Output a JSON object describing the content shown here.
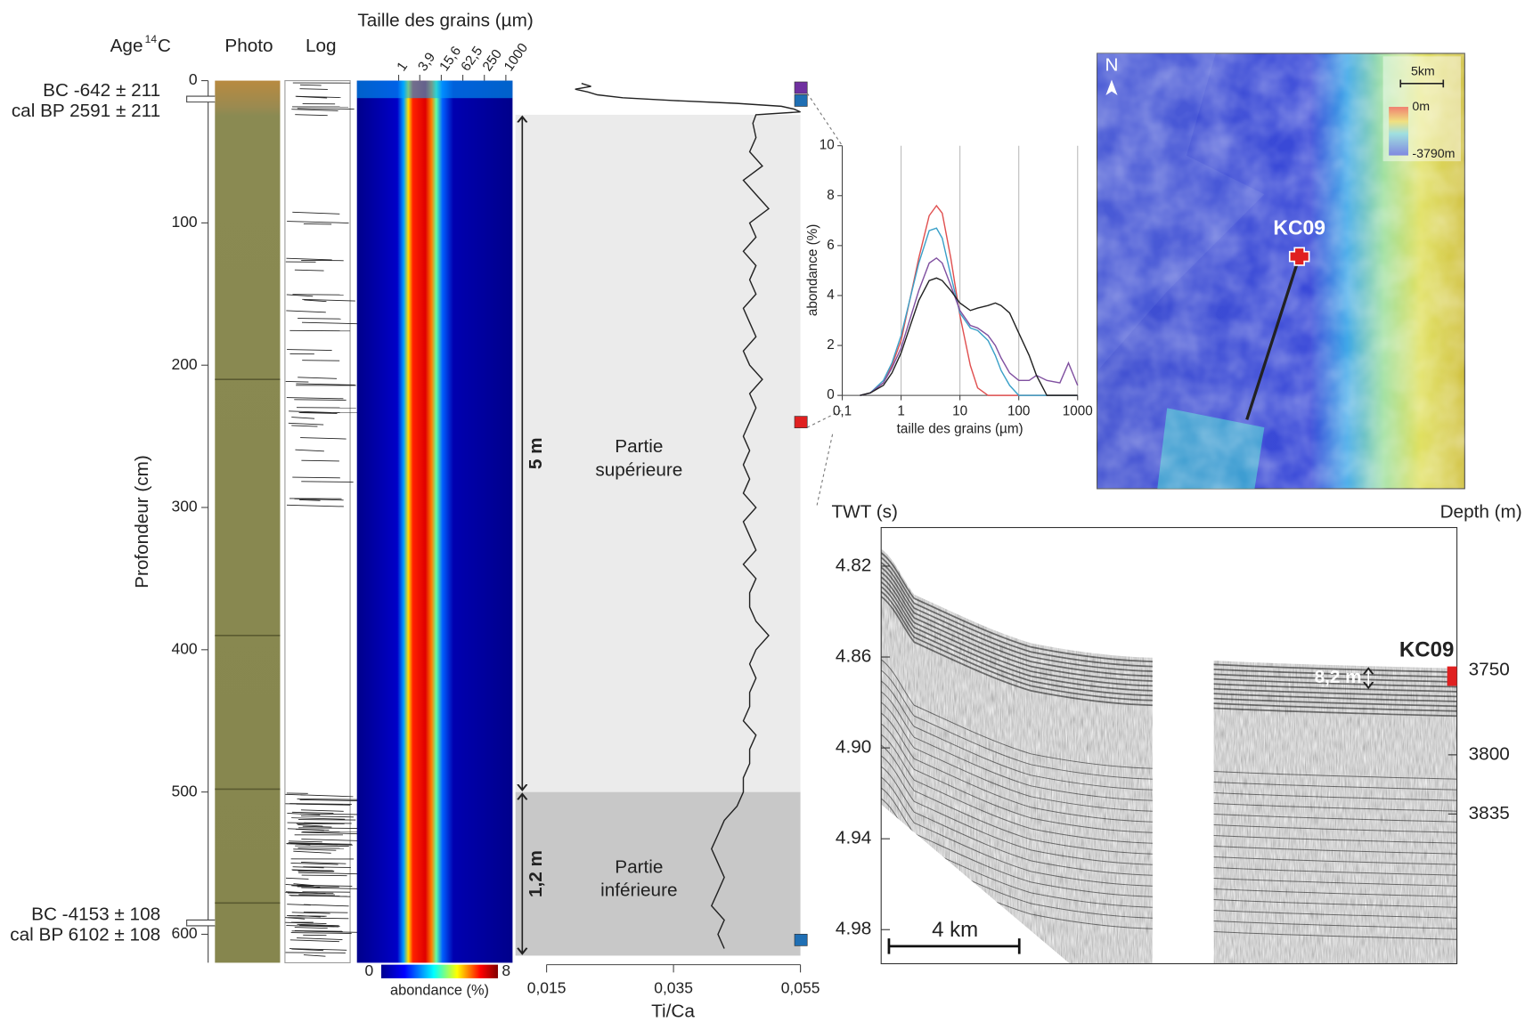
{
  "chart_data": [
    {
      "type": "core",
      "age_header": "Age",
      "age_superscript": "14",
      "age_unit": "C",
      "photo_header": "Photo",
      "log_header": "Log",
      "ylabel": "Profondeur (cm)",
      "ylim": [
        0,
        620
      ],
      "yticks": [
        0,
        100,
        200,
        300,
        400,
        500,
        600
      ],
      "dates": [
        {
          "depth": 13,
          "lines": [
            "BC -642 ± 211",
            "cal BP 2591 ± 211"
          ]
        },
        {
          "depth": 592,
          "lines": [
            "BC -4153 ± 108",
            "cal BP 6102 ± 108"
          ]
        }
      ],
      "zones": [
        {
          "top": 24,
          "bottom": 500,
          "thickness_label": "5 m",
          "label_lines": [
            "Partie",
            "supérieure"
          ],
          "color": "#ebebeb"
        },
        {
          "top": 500,
          "bottom": 615,
          "thickness_label": "1,2 m",
          "label_lines": [
            "Partie",
            "inférieure"
          ],
          "color": "#c8c8c8"
        }
      ],
      "samples": [
        {
          "depth": 5,
          "color": "#7030a0"
        },
        {
          "depth": 14,
          "color": "#1f6fb4"
        },
        {
          "depth": 240,
          "color": "#e02020"
        },
        {
          "depth": 604,
          "color": "#1f6fb4"
        }
      ]
    },
    {
      "type": "heatmap",
      "title": "Taille des grains (µm)",
      "log_x": true,
      "xlim": [
        0.068,
        1540
      ],
      "xticks": [
        1,
        {
          "value": 3.9,
          "label": "3,9"
        },
        {
          "value": 15.6,
          "label": "15,6"
        },
        {
          "value": 62.5,
          "label": "62,5"
        },
        250,
        1000
      ],
      "ylim": [
        0,
        620
      ],
      "clim": [
        0,
        8
      ],
      "cticks": [
        0,
        8
      ],
      "colorbar_label": "abondance (%)"
    },
    {
      "type": "line",
      "xlabel": "Ti/Ca",
      "color": "#222222",
      "xlim": [
        0.015,
        0.055
      ],
      "xticks": [
        {
          "value": 0.015,
          "label": "0,015"
        },
        {
          "value": 0.035,
          "label": "0,035"
        },
        {
          "value": 0.055,
          "label": "0,055"
        }
      ],
      "ylim": [
        0,
        620
      ],
      "y": [
        2,
        4,
        6,
        8,
        10,
        12,
        14,
        16,
        18,
        20,
        22,
        24,
        30,
        40,
        50,
        60,
        70,
        80,
        90,
        100,
        110,
        120,
        130,
        140,
        150,
        160,
        170,
        180,
        190,
        200,
        210,
        220,
        230,
        240,
        250,
        260,
        270,
        280,
        290,
        300,
        310,
        320,
        330,
        340,
        350,
        360,
        370,
        380,
        390,
        400,
        410,
        420,
        430,
        440,
        450,
        460,
        470,
        480,
        490,
        500,
        510,
        520,
        530,
        540,
        550,
        560,
        570,
        580,
        590,
        600,
        610
      ],
      "values": [
        0.0205,
        0.022,
        0.0195,
        0.0215,
        0.023,
        0.027,
        0.035,
        0.045,
        0.052,
        0.054,
        0.055,
        0.048,
        0.0475,
        0.048,
        0.047,
        0.049,
        0.046,
        0.048,
        0.05,
        0.047,
        0.048,
        0.046,
        0.048,
        0.047,
        0.048,
        0.046,
        0.047,
        0.048,
        0.046,
        0.047,
        0.049,
        0.047,
        0.048,
        0.047,
        0.046,
        0.047,
        0.046,
        0.047,
        0.046,
        0.048,
        0.046,
        0.047,
        0.048,
        0.046,
        0.048,
        0.047,
        0.047,
        0.048,
        0.05,
        0.048,
        0.047,
        0.048,
        0.047,
        0.047,
        0.046,
        0.048,
        0.047,
        0.047,
        0.046,
        0.046,
        0.045,
        0.043,
        0.042,
        0.041,
        0.042,
        0.043,
        0.042,
        0.041,
        0.043,
        0.042,
        0.043
      ]
    },
    {
      "type": "distribution",
      "log_x": true,
      "grid": true,
      "xlabel": "taille des grains (µm)",
      "ylabel": "abondance (%)",
      "xlim": [
        0.1,
        1000
      ],
      "xticks": [
        {
          "value": 0.1,
          "label": "0,1"
        },
        1,
        10,
        100,
        1000
      ],
      "ylim": [
        0,
        10
      ],
      "yticks": [
        0,
        2,
        4,
        6,
        8,
        10
      ],
      "x": [
        0.2,
        0.3,
        0.5,
        0.7,
        1,
        2,
        3,
        4,
        5,
        7,
        10,
        15,
        20,
        30,
        40,
        50,
        70,
        100,
        150,
        200,
        300,
        500,
        700,
        1000
      ],
      "series": [
        {
          "color": "#e05050",
          "values": [
            0,
            0.1,
            0.5,
            1.2,
            2.2,
            5.5,
            7.2,
            7.6,
            7.3,
            5.5,
            3.2,
            1.2,
            0.3,
            0,
            0,
            0,
            0,
            0,
            0,
            0,
            0,
            0,
            0,
            0
          ]
        },
        {
          "color": "#3aa0c8",
          "values": [
            0,
            0.1,
            0.6,
            1.3,
            2.4,
            5.3,
            6.6,
            6.7,
            6.3,
            4.8,
            3.3,
            2.7,
            2.6,
            2.2,
            1.6,
            1.0,
            0.4,
            0,
            0,
            0,
            0,
            0,
            0,
            0
          ]
        },
        {
          "color": "#8050a0",
          "values": [
            0,
            0.1,
            0.5,
            1.1,
            1.9,
            4.2,
            5.3,
            5.5,
            5.3,
            4.4,
            3.4,
            2.8,
            2.7,
            2.4,
            2.0,
            1.5,
            0.9,
            0.6,
            0.6,
            0.8,
            0.6,
            0.5,
            1.3,
            0.4
          ]
        },
        {
          "color": "#222222",
          "values": [
            0,
            0.1,
            0.4,
            0.9,
            1.7,
            3.8,
            4.6,
            4.7,
            4.6,
            4.2,
            3.7,
            3.4,
            3.5,
            3.6,
            3.7,
            3.6,
            3.3,
            2.5,
            1.6,
            0.8,
            0,
            0,
            0,
            0
          ]
        }
      ]
    },
    {
      "type": "map",
      "north": "N",
      "scale_label": "5km",
      "legend_top": "0m",
      "legend_bottom": "-3790m",
      "site": "KC09"
    },
    {
      "type": "seismic",
      "ylabel": "TWT (s)",
      "y2label": "Depth (m)",
      "ylim": [
        4.803,
        4.995
      ],
      "yticks": [
        4.82,
        4.86,
        {
          "value": 4.9,
          "label": "4.90"
        },
        4.94,
        4.98
      ],
      "y2lim": [
        3665.5,
        3923.6
      ],
      "y2ticks": [
        3750,
        3800,
        3835
      ],
      "site": "KC09",
      "penetration_label": "8,2 m",
      "scale_label": "4 km"
    }
  ]
}
